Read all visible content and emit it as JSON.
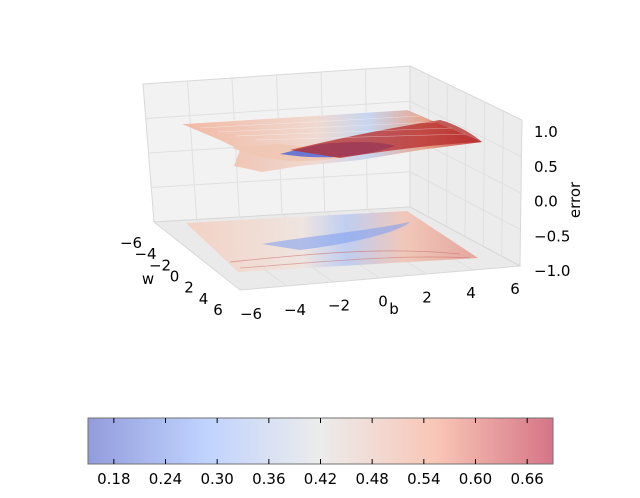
{
  "chart_data": {
    "type": "surface3d",
    "surface": {
      "w_range": [
        -6,
        6
      ],
      "b_range": [
        -6,
        6
      ],
      "error_range": [
        -1.0,
        1.0
      ],
      "colormap": "coolwarm",
      "projection_on_floor": true
    },
    "axes": {
      "x": {
        "label": "w",
        "ticks": [
          "−6",
          "−4",
          "−2",
          "0",
          "2",
          "4",
          "6"
        ]
      },
      "y": {
        "label": "b",
        "ticks": [
          "−6",
          "−4",
          "−2",
          "0",
          "2",
          "4",
          "6"
        ]
      },
      "z": {
        "label": "error",
        "ticks": [
          "−1.0",
          "−0.5",
          "0.0",
          "0.5",
          "1.0"
        ]
      }
    },
    "colorbar": {
      "range": [
        0.15,
        0.69
      ],
      "ticks": [
        "0.18",
        "0.24",
        "0.30",
        "0.36",
        "0.42",
        "0.48",
        "0.54",
        "0.60",
        "0.66"
      ],
      "tick_values": [
        0.18,
        0.24,
        0.3,
        0.36,
        0.42,
        0.48,
        0.54,
        0.6,
        0.66
      ]
    },
    "grid": true
  },
  "colors": {
    "cool": "#3b4cc0",
    "neutral": "#dddddd",
    "warm": "#b40426",
    "pane": "#f2f2f2"
  }
}
